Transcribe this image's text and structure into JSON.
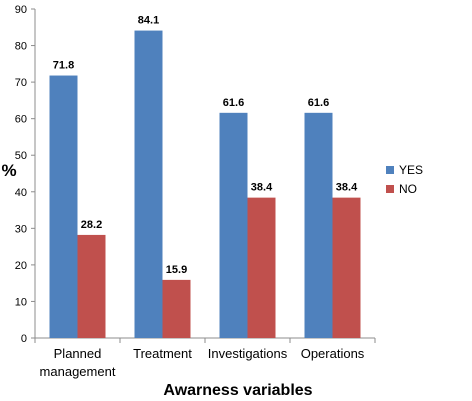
{
  "chart_data": {
    "type": "bar",
    "categories": [
      "Planned management",
      "Treatment",
      "Investigations",
      "Operations"
    ],
    "category_lines": [
      [
        "Planned",
        "management"
      ],
      [
        "Treatment"
      ],
      [
        "Investigations"
      ],
      [
        "Operations"
      ]
    ],
    "series": [
      {
        "name": "YES",
        "values": [
          71.8,
          84.1,
          61.6,
          61.6
        ],
        "color": "#4f81bd",
        "value_labels": [
          "71.8",
          "84.1",
          "61.6",
          "61.6"
        ]
      },
      {
        "name": "NO",
        "values": [
          28.2,
          15.9,
          38.4,
          38.4
        ],
        "color": "#c0504d",
        "value_labels": [
          "28.2",
          "15.9",
          "38.4",
          "38.4"
        ]
      }
    ],
    "xlabel": "Awarness variables",
    "ylabel": "%",
    "ylim": [
      0,
      90
    ],
    "yticks": [
      0,
      10,
      20,
      30,
      40,
      50,
      60,
      70,
      80,
      90
    ],
    "grid": false,
    "legend_position": "right"
  }
}
